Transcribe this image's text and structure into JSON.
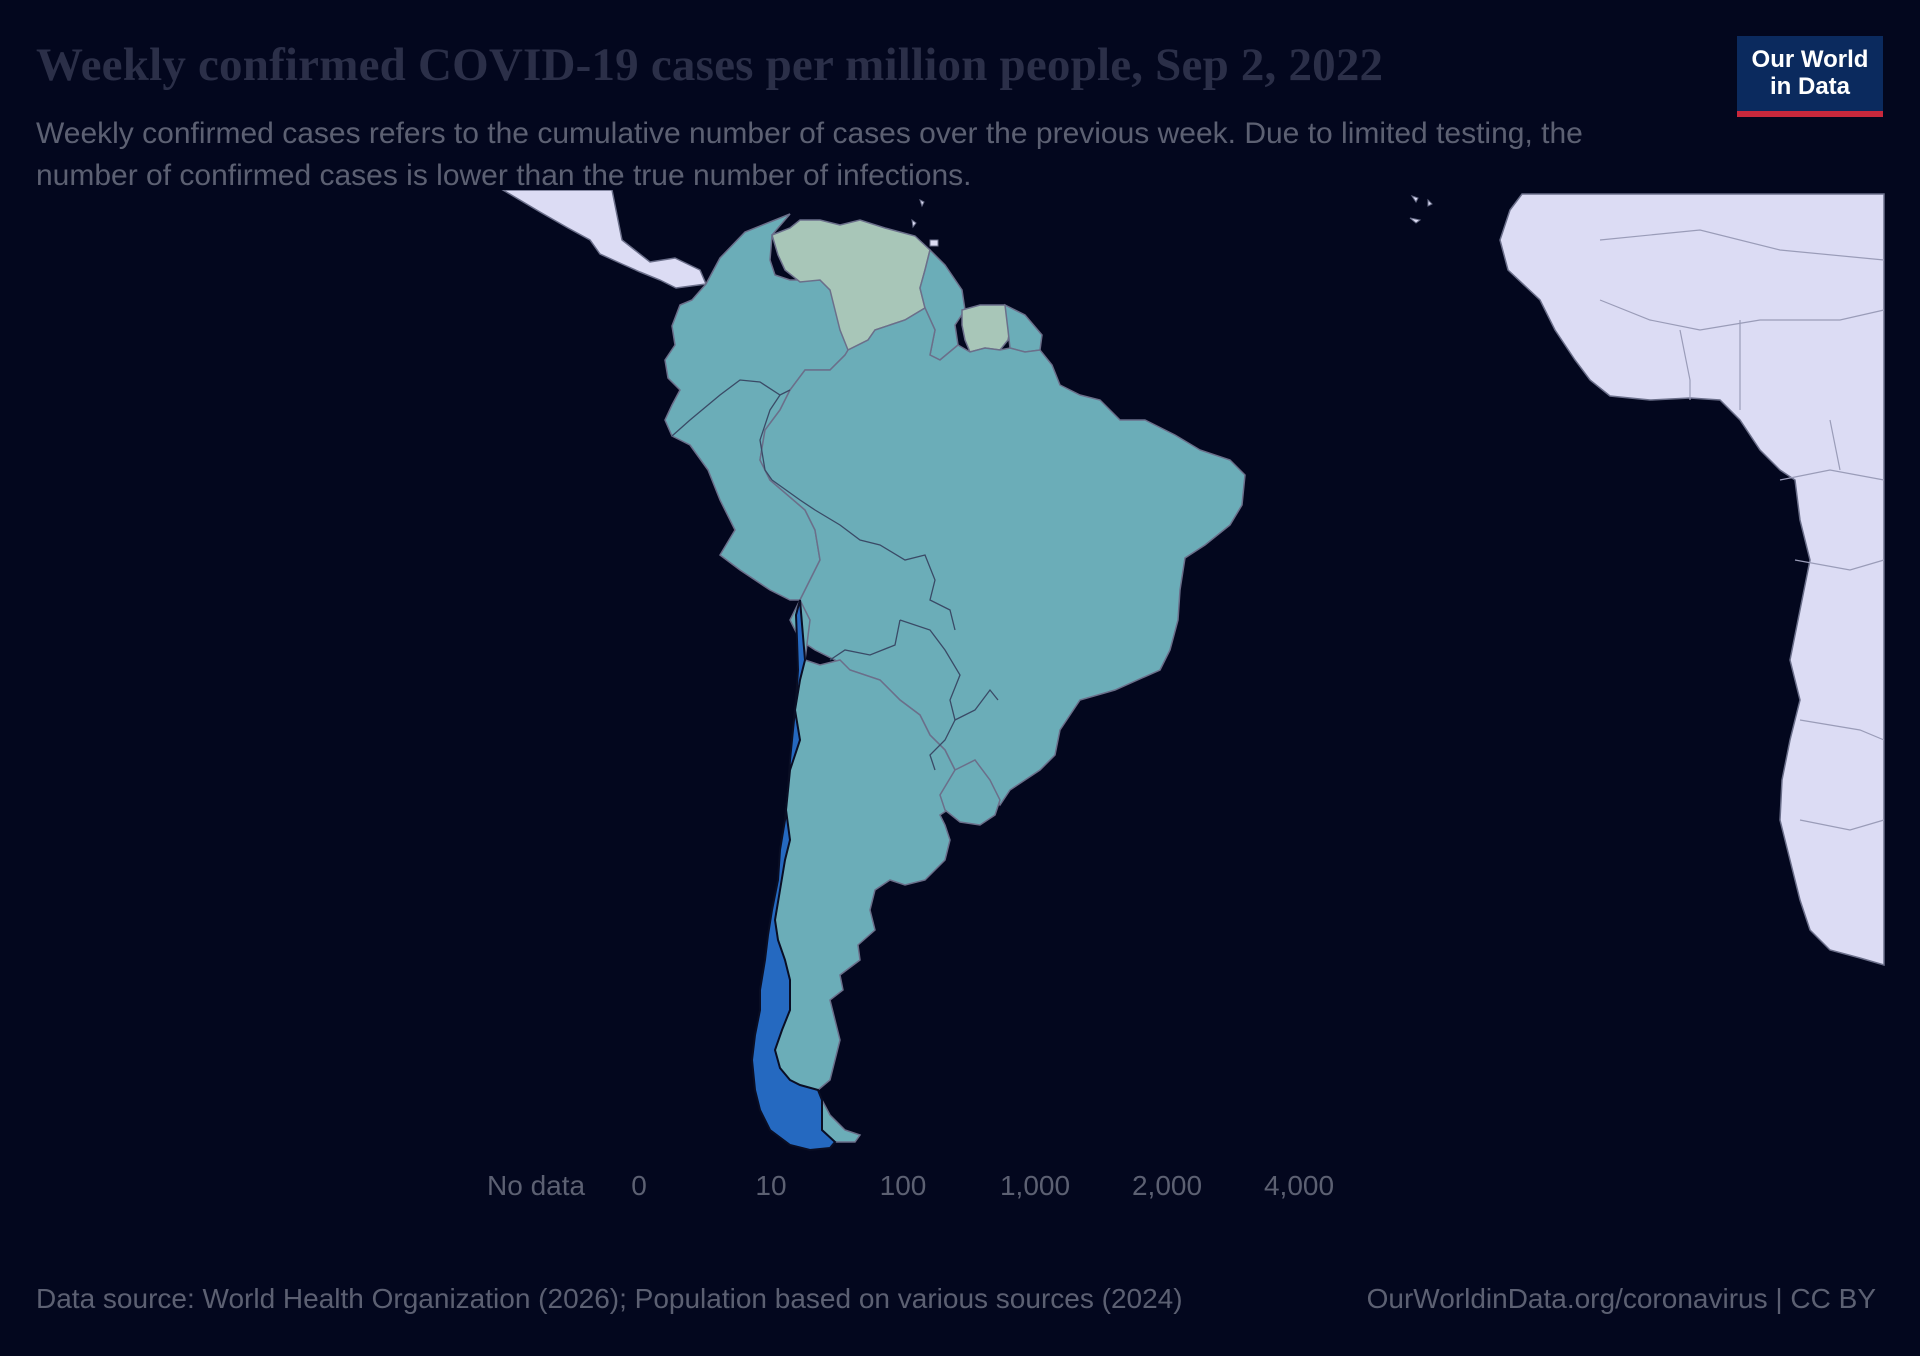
{
  "title": "Weekly confirmed COVID-19 cases per million people, Sep 2, 2022",
  "subtitle": "Weekly confirmed cases refers to the cumulative number of cases over the previous week. Due to limited testing, the number of confirmed cases is lower than the true number of infections.",
  "logo": {
    "line1": "Our World",
    "line2": "in Data"
  },
  "legend": {
    "no_data_label": "No data",
    "ticks": [
      "0",
      "10",
      "100",
      "1,000",
      "2,000",
      "4,000"
    ],
    "bins": [
      {
        "range": "0–10",
        "color": "#d7dcc8"
      },
      {
        "range": "10–100",
        "color": "#a8c6b8"
      },
      {
        "range": "100–1,000",
        "color": "#6badb8"
      },
      {
        "range": "1,000–2,000",
        "color": "#3a9bc8"
      },
      {
        "range": "2,000–4,000",
        "color": "#2569c0"
      },
      {
        "range": ">4,000",
        "color": "#1d2f9a"
      }
    ]
  },
  "regions": [
    {
      "name": "Venezuela",
      "bin": "10–100",
      "color": "#a8c6b8"
    },
    {
      "name": "Suriname",
      "bin": "10–100",
      "color": "#a8c6b8"
    },
    {
      "name": "Colombia",
      "bin": "100–1,000",
      "color": "#6badb8"
    },
    {
      "name": "Brazil",
      "bin": "100–1,000",
      "color": "#6badb8"
    },
    {
      "name": "Argentina",
      "bin": "100–1,000",
      "color": "#6badb8"
    },
    {
      "name": "Chile",
      "bin": "2,000–4,000",
      "color": "#2569c0"
    }
  ],
  "colors": {
    "background": "#03071e",
    "land_other": "#dcdcf4",
    "border": "#6b6f8a"
  },
  "footer": {
    "source": "Data source: World Health Organization (2026); Population based on various sources (2024)",
    "url": "OurWorldinData.org/coronavirus | CC BY"
  }
}
